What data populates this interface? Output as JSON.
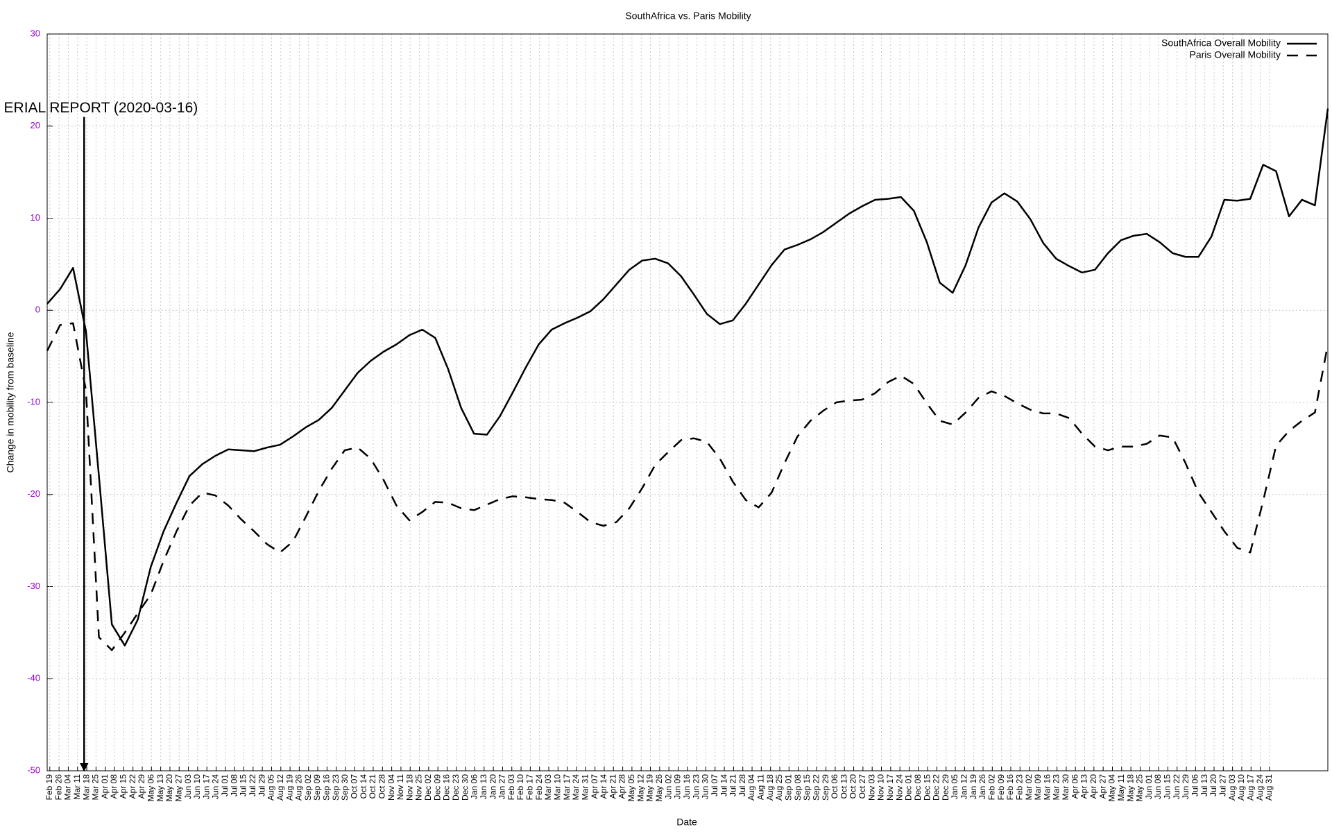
{
  "chart_data": {
    "type": "line",
    "title": "SouthAfrica vs. Paris Mobility",
    "x_label": "Date",
    "y_label": "Change in mobility from baseline",
    "x": [
      -2,
      7.8,
      17.6,
      27.4,
      37.2,
      47,
      56.8,
      66.6,
      76.4,
      86.2,
      96,
      105.8,
      115.6,
      125.4,
      135.2,
      145,
      154.8,
      164.6,
      174.4,
      184.2,
      194,
      203.8,
      213.6,
      223.4,
      233.2,
      243,
      252.8,
      262.6,
      272.4,
      282.2,
      292,
      301.8,
      311.6,
      321.4,
      331.2,
      341,
      350.8,
      360.6,
      370.4,
      380.2,
      390,
      399.8,
      409.6,
      419.4,
      429.2,
      439,
      448.8,
      458.6,
      468.4,
      478.2,
      488,
      497.8,
      507.6,
      517.4,
      527.2,
      537,
      546.8,
      556.6,
      566.4,
      576.2,
      586,
      595.8,
      605.6,
      615.4,
      625.2,
      635,
      644.8,
      654.6,
      664.4,
      674.2,
      684,
      693.8,
      703.6,
      713.4,
      723.2,
      733,
      742.8,
      752.6,
      762.4,
      772.2,
      782,
      791.8,
      801.6,
      811.4,
      821.2,
      831,
      840.8,
      850.6,
      860.4,
      870.2,
      880,
      889.8,
      899.6,
      909.4,
      919.2,
      929,
      938.8,
      948.6,
      958.4,
      968.2
    ],
    "series": [
      {
        "name": "SouthAfrica Overall Mobility",
        "color": "#000000",
        "dash": "solid",
        "values": [
          0.7,
          2.3,
          4.6,
          -2.3,
          -18,
          -34.1,
          -36.4,
          -33.6,
          -27.9,
          -24,
          -20.9,
          -18,
          -16.7,
          -15.8,
          -15.1,
          -15.2,
          -15.3,
          -14.9,
          -14.6,
          -13.7,
          -12.7,
          -11.9,
          -10.6,
          -8.7,
          -6.8,
          -5.5,
          -4.5,
          -3.7,
          -2.7,
          -2.1,
          -3.0,
          -6.4,
          -10.6,
          -13.4,
          -13.5,
          -11.5,
          -8.9,
          -6.2,
          -3.7,
          -2.1,
          -1.4,
          -0.8,
          -0.1,
          1.2,
          2.8,
          4.4,
          5.4,
          5.6,
          5.1,
          3.7,
          1.7,
          -0.4,
          -1.5,
          -1.1,
          0.7,
          2.8,
          4.9,
          6.6,
          7.1,
          7.7,
          8.5,
          9.5,
          10.5,
          11.3,
          12.0,
          12.1,
          12.3,
          10.8,
          7.4,
          3.0,
          1.9,
          4.9,
          9.0,
          11.7,
          12.7,
          11.8,
          9.9,
          7.3,
          5.6,
          4.8,
          4.1,
          4.4,
          6.2,
          7.6,
          8.1,
          8.3,
          7.4,
          6.2,
          5.8,
          5.8,
          8.0,
          12.0,
          11.9,
          12.1,
          15.8,
          15.1,
          10.2,
          12.0,
          11.4,
          21.9
        ]
      },
      {
        "name": "Paris Overall Mobility",
        "color": "#000000",
        "dash": "dashed",
        "values": [
          -4.4,
          -1.6,
          -1.4,
          -8.7,
          -35.5,
          -36.9,
          -35,
          -32.9,
          -30.9,
          -27.2,
          -24,
          -21.2,
          -19.8,
          -20.1,
          -21.2,
          -22.7,
          -24,
          -25.4,
          -26.3,
          -25.1,
          -22.4,
          -19.6,
          -17.2,
          -15.2,
          -14.9,
          -16.1,
          -18.4,
          -21.2,
          -22.8,
          -21.9,
          -20.8,
          -20.9,
          -21.5,
          -21.7,
          -21.1,
          -20.5,
          -20.2,
          -20.3,
          -20.5,
          -20.6,
          -20.9,
          -21.9,
          -23.0,
          -23.4,
          -23.0,
          -21.5,
          -19.3,
          -16.8,
          -15.4,
          -14.1,
          -13.9,
          -14.3,
          -16.1,
          -18.6,
          -20.6,
          -21.4,
          -19.8,
          -16.6,
          -13.7,
          -12.0,
          -10.9,
          -10.0,
          -9.8,
          -9.7,
          -9.0,
          -7.8,
          -7.1,
          -8.0,
          -10.1,
          -12.0,
          -12.4,
          -11.1,
          -9.5,
          -8.8,
          -9.3,
          -10.1,
          -10.8,
          -11.2,
          -11.2,
          -11.7,
          -13.4,
          -14.8,
          -15.2,
          -14.8,
          -14.8,
          -14.5,
          -13.6,
          -13.8,
          -16.6,
          -19.8,
          -21.9,
          -24,
          -25.8,
          -26.3,
          -20.7,
          -14.7,
          -13.1,
          -12.0,
          -11.1,
          -3.7
        ]
      }
    ],
    "xlim": [
      -2,
      968.2
    ],
    "xticks": [
      {
        "value": 0,
        "label": "Feb 19"
      },
      {
        "value": 7,
        "label": "Feb 26"
      },
      {
        "value": 14,
        "label": "Mar 04"
      },
      {
        "value": 21,
        "label": "Mar 11"
      },
      {
        "value": 28,
        "label": "Mar 18"
      },
      {
        "value": 35,
        "label": "Mar 25"
      },
      {
        "value": 42,
        "label": "Apr 01"
      },
      {
        "value": 49,
        "label": "Apr 08"
      },
      {
        "value": 56,
        "label": "Apr 15"
      },
      {
        "value": 63,
        "label": "Apr 22"
      },
      {
        "value": 70,
        "label": "Apr 29"
      },
      {
        "value": 77,
        "label": "May 06"
      },
      {
        "value": 84,
        "label": "May 13"
      },
      {
        "value": 91,
        "label": "May 20"
      },
      {
        "value": 98,
        "label": "May 27"
      },
      {
        "value": 105,
        "label": "Jun 03"
      },
      {
        "value": 112,
        "label": "Jun 10"
      },
      {
        "value": 119,
        "label": "Jun 17"
      },
      {
        "value": 126,
        "label": "Jun 24"
      },
      {
        "value": 133,
        "label": "Jul 01"
      },
      {
        "value": 140,
        "label": "Jul 08"
      },
      {
        "value": 147,
        "label": "Jul 15"
      },
      {
        "value": 154,
        "label": "Jul 22"
      },
      {
        "value": 161,
        "label": "Jul 29"
      },
      {
        "value": 168,
        "label": "Aug 05"
      },
      {
        "value": 175,
        "label": "Aug 12"
      },
      {
        "value": 182,
        "label": "Aug 19"
      },
      {
        "value": 189,
        "label": "Aug 26"
      },
      {
        "value": 196,
        "label": "Sep 02"
      },
      {
        "value": 203,
        "label": "Sep 09"
      },
      {
        "value": 210,
        "label": "Sep 16"
      },
      {
        "value": 217,
        "label": "Sep 23"
      },
      {
        "value": 224,
        "label": "Sep 30"
      },
      {
        "value": 231,
        "label": "Oct 07"
      },
      {
        "value": 238,
        "label": "Oct 14"
      },
      {
        "value": 245,
        "label": "Oct 21"
      },
      {
        "value": 252,
        "label": "Oct 28"
      },
      {
        "value": 259,
        "label": "Nov 04"
      },
      {
        "value": 266,
        "label": "Nov 11"
      },
      {
        "value": 273,
        "label": "Nov 18"
      },
      {
        "value": 280,
        "label": "Nov 25"
      },
      {
        "value": 287,
        "label": "Dec 02"
      },
      {
        "value": 294,
        "label": "Dec 09"
      },
      {
        "value": 301,
        "label": "Dec 16"
      },
      {
        "value": 308,
        "label": "Dec 23"
      },
      {
        "value": 315,
        "label": "Dec 30"
      },
      {
        "value": 322,
        "label": "Jan 06"
      },
      {
        "value": 329,
        "label": "Jan 13"
      },
      {
        "value": 336,
        "label": "Jan 20"
      },
      {
        "value": 343,
        "label": "Jan 27"
      },
      {
        "value": 350,
        "label": "Feb 03"
      },
      {
        "value": 357,
        "label": "Feb 10"
      },
      {
        "value": 364,
        "label": "Feb 17"
      },
      {
        "value": 371,
        "label": "Feb 24"
      },
      {
        "value": 378,
        "label": "Mar 03"
      },
      {
        "value": 385,
        "label": "Mar 10"
      },
      {
        "value": 392,
        "label": "Mar 17"
      },
      {
        "value": 399,
        "label": "Mar 24"
      },
      {
        "value": 406,
        "label": "Mar 31"
      },
      {
        "value": 413,
        "label": "Apr 07"
      },
      {
        "value": 420,
        "label": "Apr 14"
      },
      {
        "value": 427,
        "label": "Apr 21"
      },
      {
        "value": 434,
        "label": "Apr 28"
      },
      {
        "value": 441,
        "label": "May 05"
      },
      {
        "value": 448,
        "label": "May 12"
      },
      {
        "value": 455,
        "label": "May 19"
      },
      {
        "value": 462,
        "label": "May 26"
      },
      {
        "value": 469,
        "label": "Jun 02"
      },
      {
        "value": 476,
        "label": "Jun 09"
      },
      {
        "value": 483,
        "label": "Jun 16"
      },
      {
        "value": 490,
        "label": "Jun 23"
      },
      {
        "value": 497,
        "label": "Jun 30"
      },
      {
        "value": 504,
        "label": "Jul 07"
      },
      {
        "value": 511,
        "label": "Jul 14"
      },
      {
        "value": 518,
        "label": "Jul 21"
      },
      {
        "value": 525,
        "label": "Jul 28"
      },
      {
        "value": 532,
        "label": "Aug 04"
      },
      {
        "value": 539,
        "label": "Aug 11"
      },
      {
        "value": 546,
        "label": "Aug 18"
      },
      {
        "value": 553,
        "label": "Aug 25"
      },
      {
        "value": 560,
        "label": "Sep 01"
      },
      {
        "value": 567,
        "label": "Sep 08"
      },
      {
        "value": 574,
        "label": "Sep 15"
      },
      {
        "value": 581,
        "label": "Sep 22"
      },
      {
        "value": 588,
        "label": "Sep 29"
      },
      {
        "value": 595,
        "label": "Oct 06"
      },
      {
        "value": 602,
        "label": "Oct 13"
      },
      {
        "value": 609,
        "label": "Oct 20"
      },
      {
        "value": 616,
        "label": "Oct 27"
      },
      {
        "value": 623,
        "label": "Nov 03"
      },
      {
        "value": 630,
        "label": "Nov 10"
      },
      {
        "value": 637,
        "label": "Nov 17"
      },
      {
        "value": 644,
        "label": "Nov 24"
      },
      {
        "value": 651,
        "label": "Dec 01"
      },
      {
        "value": 658,
        "label": "Dec 08"
      },
      {
        "value": 665,
        "label": "Dec 15"
      },
      {
        "value": 672,
        "label": "Dec 22"
      },
      {
        "value": 679,
        "label": "Dec 29"
      },
      {
        "value": 686,
        "label": "Jan 05"
      },
      {
        "value": 693,
        "label": "Jan 12"
      },
      {
        "value": 700,
        "label": "Jan 19"
      },
      {
        "value": 707,
        "label": "Jan 26"
      },
      {
        "value": 714,
        "label": "Feb 02"
      },
      {
        "value": 721,
        "label": "Feb 09"
      },
      {
        "value": 728,
        "label": "Feb 16"
      },
      {
        "value": 735,
        "label": "Feb 23"
      },
      {
        "value": 742,
        "label": "Mar 02"
      },
      {
        "value": 749,
        "label": "Mar 09"
      },
      {
        "value": 756,
        "label": "Mar 16"
      },
      {
        "value": 763,
        "label": "Mar 23"
      },
      {
        "value": 770,
        "label": "Mar 30"
      },
      {
        "value": 777,
        "label": "Apr 06"
      },
      {
        "value": 784,
        "label": "Apr 13"
      },
      {
        "value": 791,
        "label": "Apr 20"
      },
      {
        "value": 798,
        "label": "Apr 27"
      },
      {
        "value": 805,
        "label": "May 04"
      },
      {
        "value": 812,
        "label": "May 11"
      },
      {
        "value": 819,
        "label": "May 18"
      },
      {
        "value": 826,
        "label": "May 25"
      },
      {
        "value": 833,
        "label": "Jun 01"
      },
      {
        "value": 840,
        "label": "Jun 08"
      },
      {
        "value": 847,
        "label": "Jun 15"
      },
      {
        "value": 854,
        "label": "Jun 22"
      },
      {
        "value": 861,
        "label": "Jun 29"
      },
      {
        "value": 868,
        "label": "Jul 06"
      },
      {
        "value": 875,
        "label": "Jul 13"
      },
      {
        "value": 882,
        "label": "Jul 20"
      },
      {
        "value": 889,
        "label": "Jul 27"
      },
      {
        "value": 896,
        "label": "Aug 03"
      },
      {
        "value": 903,
        "label": "Aug 10"
      },
      {
        "value": 910,
        "label": "Aug 17"
      },
      {
        "value": 917,
        "label": "Aug 24"
      },
      {
        "value": 924,
        "label": "Aug 31"
      }
    ],
    "ylim": [
      -50,
      30
    ],
    "yticks": [
      -50,
      -40,
      -30,
      -20,
      -10,
      0,
      10,
      20,
      30
    ],
    "grid": true,
    "legend": "top-right",
    "annotations": [
      {
        "text": "ERIAL REPORT (2020-03-16)",
        "x": 26,
        "y": 21
      }
    ]
  }
}
